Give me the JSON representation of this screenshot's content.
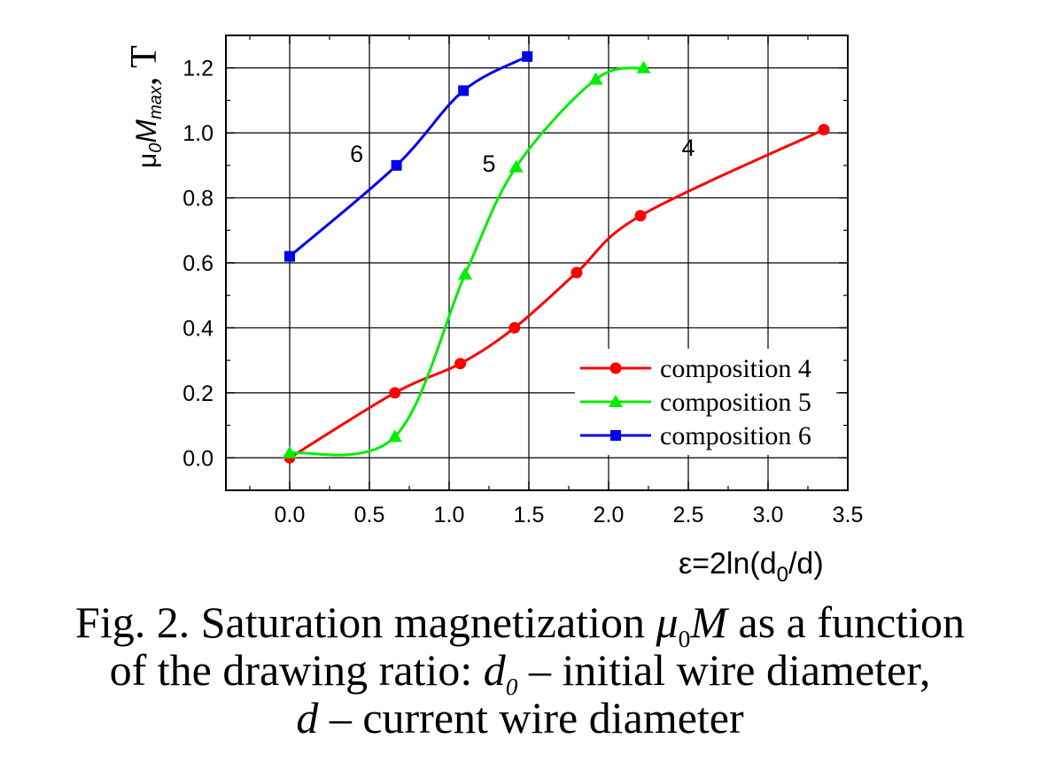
{
  "chart_data": {
    "type": "line",
    "xlabel": {
      "main": "ε=2ln(d",
      "sub": "0",
      "end": "/d)"
    },
    "ylabel": {
      "mu": "μ",
      "sub0": "0",
      "M": "M",
      "submax": "max",
      "unit": ", T"
    },
    "xlim": [
      -0.4,
      3.5
    ],
    "ylim": [
      -0.1,
      1.3
    ],
    "xticks": [
      0.0,
      0.5,
      1.0,
      1.5,
      2.0,
      2.5,
      3.0,
      3.5
    ],
    "xtick_labels": [
      "0.0",
      "0.5",
      "1.0",
      "1.5",
      "2.0",
      "2.5",
      "3.0",
      "3.5"
    ],
    "yticks": [
      0.0,
      0.2,
      0.4,
      0.6,
      0.8,
      1.0,
      1.2
    ],
    "ytick_labels": [
      "0.0",
      "0.2",
      "0.4",
      "0.6",
      "0.8",
      "1.0",
      "1.2"
    ],
    "grid": true,
    "legend_position": "bottom-right",
    "series": [
      {
        "name": "composition 4",
        "label": "4",
        "color": "#ff0000",
        "marker": "circle",
        "x": [
          0.0,
          0.66,
          1.07,
          1.41,
          1.8,
          2.2,
          3.35
        ],
        "y": [
          0.0,
          0.2,
          0.29,
          0.4,
          0.57,
          0.745,
          1.01
        ]
      },
      {
        "name": "composition 5",
        "label": "5",
        "color": "#00ee00",
        "marker": "triangle",
        "x": [
          0.0,
          0.66,
          1.1,
          1.42,
          1.92,
          2.22
        ],
        "y": [
          0.015,
          0.065,
          0.565,
          0.895,
          1.165,
          1.2
        ]
      },
      {
        "name": "composition 6",
        "label": "6",
        "color": "#0000ee",
        "marker": "square",
        "x": [
          0.0,
          0.67,
          1.09,
          1.49
        ],
        "y": [
          0.62,
          0.9,
          1.13,
          1.235
        ]
      }
    ]
  },
  "caption": {
    "line1_prefix": "Fig. 2. Saturation magnetization ",
    "mu": "μ",
    "mu_sub": "0",
    "M": "M",
    "line1_suffix": " as a function",
    "line2_prefix": "of the drawing ratio: ",
    "d": "d",
    "d_sub": "0",
    "line2_suffix": " – initial wire diameter,",
    "line3_d": "d",
    "line3_suffix": " – current wire diameter"
  }
}
